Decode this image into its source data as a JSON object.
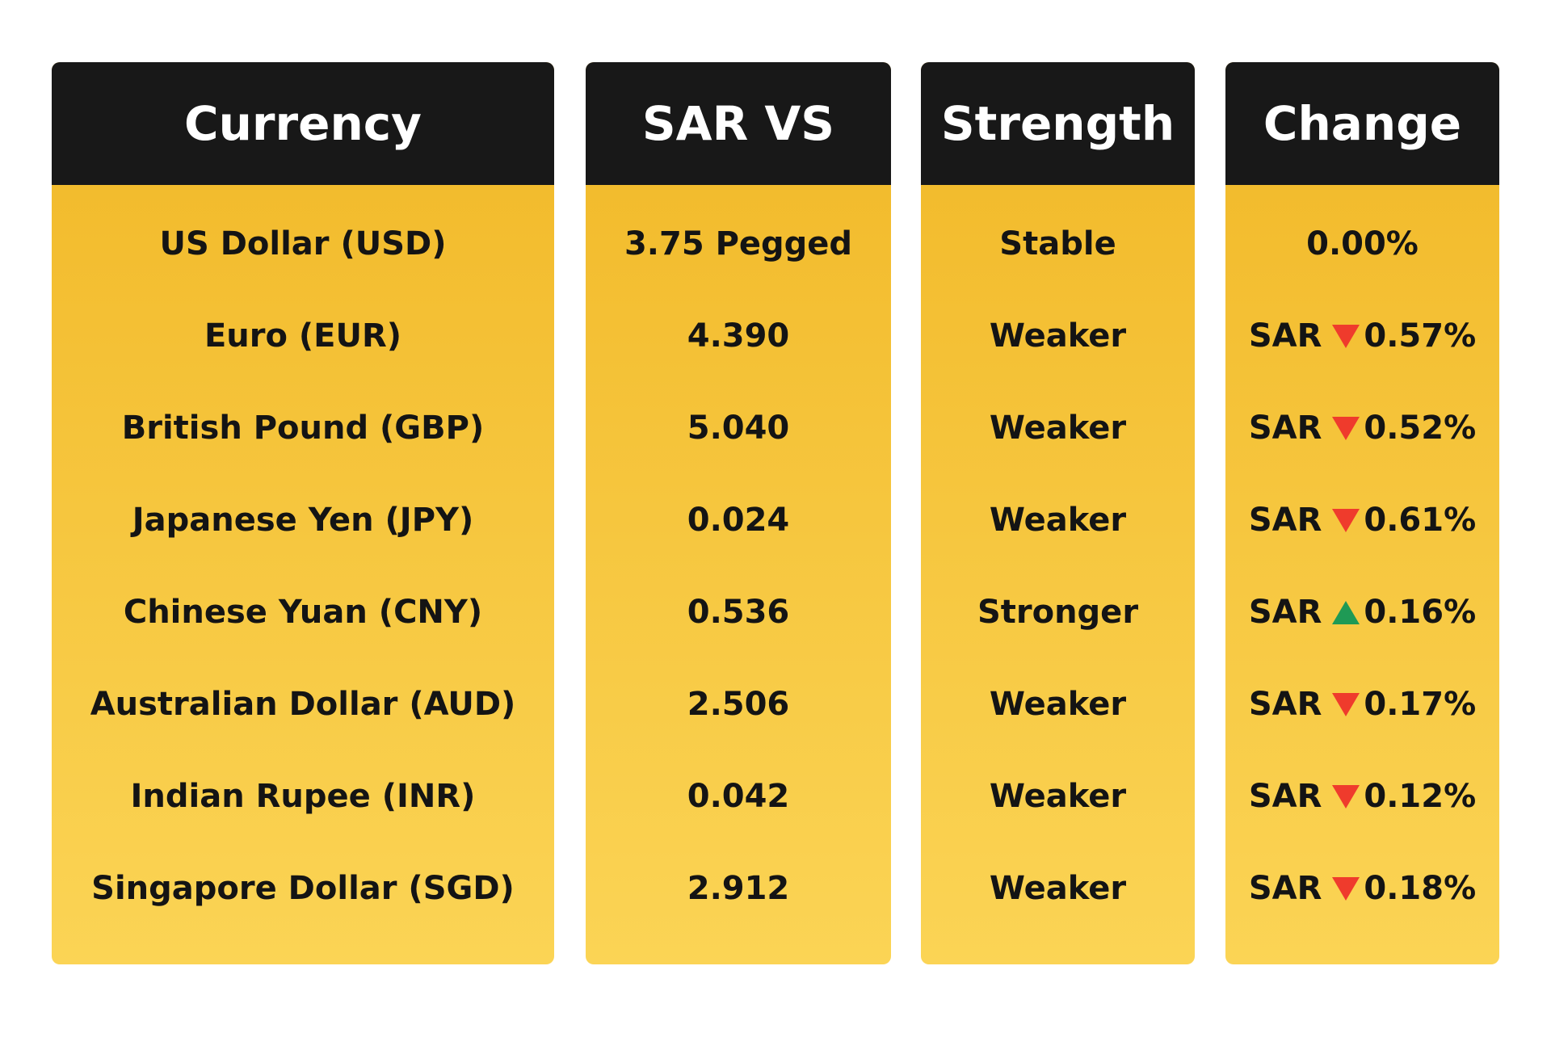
{
  "table": {
    "columns": [
      {
        "header": "Currency",
        "cells": [
          "US Dollar (USD)",
          "Euro (EUR)",
          "British Pound (GBP)",
          "Japanese Yen (JPY)",
          "Chinese Yuan (CNY)",
          "Australian Dollar (AUD)",
          "Indian Rupee (INR)",
          "Singapore Dollar (SGD)"
        ]
      },
      {
        "header": "SAR VS",
        "cells": [
          "3.75 Pegged",
          "4.390",
          "5.040",
          "0.024",
          "0.536",
          "2.506",
          "0.042",
          "2.912"
        ]
      },
      {
        "header": "Strength",
        "cells": [
          "Stable",
          "Weaker",
          "Weaker",
          "Weaker",
          "Stronger",
          "Weaker",
          "Weaker",
          "Weaker"
        ]
      },
      {
        "header": "Change",
        "cells": [
          {
            "value": "0.00%"
          },
          {
            "prefix": "SAR",
            "direction": "down",
            "value": "0.57%"
          },
          {
            "prefix": "SAR",
            "direction": "down",
            "value": "0.52%"
          },
          {
            "prefix": "SAR",
            "direction": "down",
            "value": "0.61%"
          },
          {
            "prefix": "SAR",
            "direction": "up",
            "value": "0.16%"
          },
          {
            "prefix": "SAR",
            "direction": "down",
            "value": "0.17%"
          },
          {
            "prefix": "SAR",
            "direction": "down",
            "value": "0.12%"
          },
          {
            "prefix": "SAR",
            "direction": "down",
            "value": "0.18%"
          }
        ]
      }
    ]
  }
}
